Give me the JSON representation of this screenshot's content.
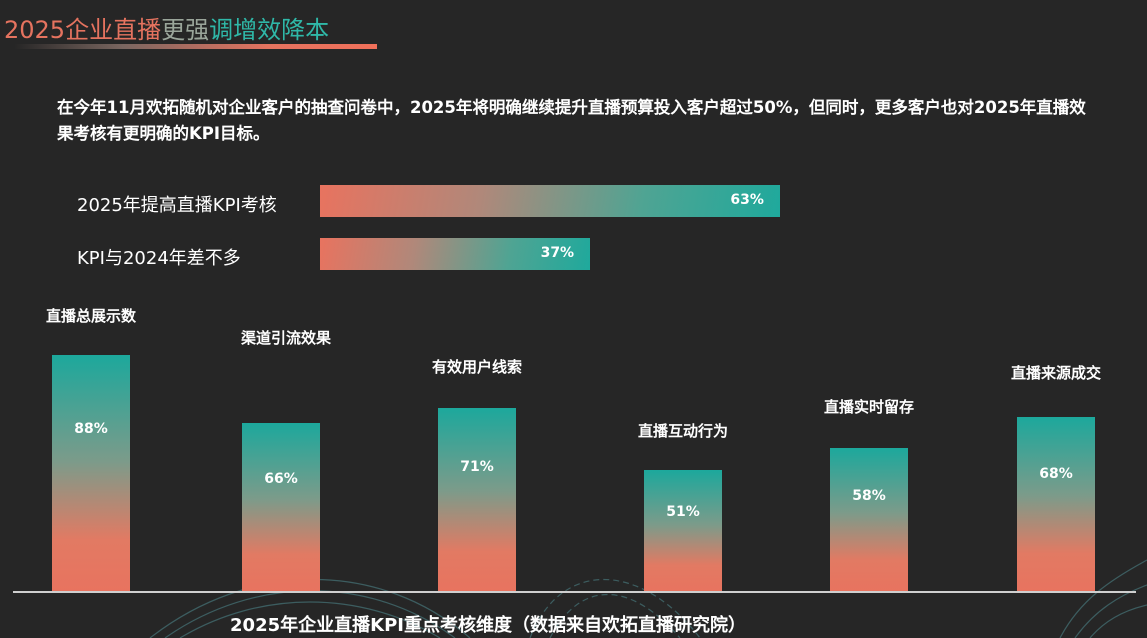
{
  "title": {
    "part1": "2025企业直播",
    "part2": "更强",
    "part3": "调增效降本"
  },
  "intro": "在今年11月欢拓随机对企业客户的抽查问卷中，2025年将明确继续提升直播预算投入客户超过50%，但同时，更多客户也对2025年直播效果考核有更明确的KPI目标。",
  "colors": {
    "coral": "#e8735f",
    "teal": "#1fa99c",
    "background": "#262626"
  },
  "chart_data": [
    {
      "type": "bar",
      "orientation": "horizontal",
      "categories": [
        "2025年提高直播KPI考核",
        "KPI与2024年差不多"
      ],
      "values": [
        63,
        37
      ],
      "value_labels": [
        "63%",
        "37%"
      ],
      "xlim": [
        0,
        100
      ]
    },
    {
      "type": "bar",
      "orientation": "vertical",
      "title": "2025年企业直播KPI重点考核维度（数据来自欢拓直播研究院）",
      "categories": [
        "直播总展示数",
        "渠道引流效果",
        "有效用户线索",
        "直播互动行为",
        "直播实时留存",
        "直播来源成交"
      ],
      "values": [
        88,
        66,
        71,
        51,
        58,
        68
      ],
      "value_labels": [
        "88%",
        "66%",
        "71%",
        "51%",
        "58%",
        "68%"
      ],
      "ylim": [
        0,
        100
      ]
    }
  ]
}
